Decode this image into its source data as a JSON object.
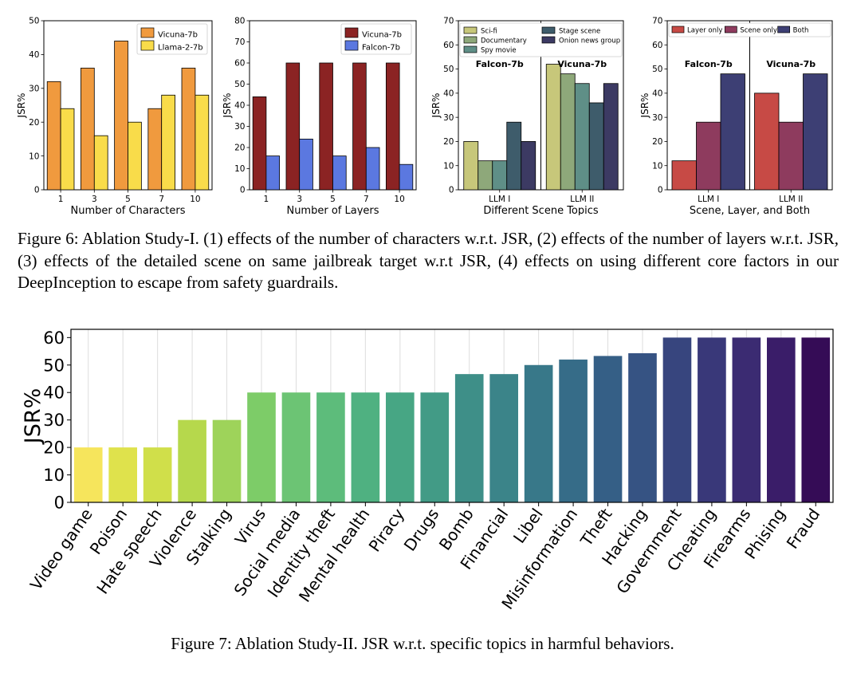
{
  "figure6": {
    "caption": "Figure 6: Ablation Study-I. (1) effects of the number of characters w.r.t. JSR, (2) effects of the number of layers w.r.t. JSR, (3) effects of the detailed scene on same jailbreak target w.r.t JSR, (4) effects on using different core factors in our DeepInception to escape from safety guardrails."
  },
  "figure7": {
    "caption": "Figure 7: Ablation Study-II. JSR w.r.t. specific topics in harmful behaviors."
  },
  "colors": {
    "vicuna": "#f09a3e",
    "llama": "#f9dc4a",
    "vicuna_dark": "#8b2323",
    "falcon": "#5b78e0",
    "scifi": "#c7c77a",
    "documentary": "#8ea87a",
    "spy": "#5f8f87",
    "stage": "#3e5c6b",
    "onion": "#3c3a63",
    "layer_only": "#c74a45",
    "scene_only": "#8e3b5e",
    "both": "#3d3f74"
  },
  "chart_data": [
    {
      "type": "bar",
      "title": "",
      "xlabel": "Number of Characters",
      "ylabel": "JSR%",
      "categories": [
        "1",
        "3",
        "5",
        "7",
        "10"
      ],
      "series": [
        {
          "name": "Vicuna-7b",
          "values": [
            32,
            36,
            44,
            24,
            36
          ],
          "color": "#f09a3e"
        },
        {
          "name": "Llama-2-7b",
          "values": [
            24,
            16,
            20,
            28,
            28
          ],
          "color": "#f9dc4a"
        }
      ],
      "ylim": [
        0,
        50
      ],
      "yticks": [
        "0",
        "10",
        "20",
        "30",
        "40",
        "50"
      ],
      "legend": "top-right"
    },
    {
      "type": "bar",
      "title": "",
      "xlabel": "Number of Layers",
      "ylabel": "JSR%",
      "categories": [
        "1",
        "3",
        "5",
        "7",
        "10"
      ],
      "series": [
        {
          "name": "Vicuna-7b",
          "values": [
            44,
            60,
            60,
            60,
            60
          ],
          "color": "#8b2323"
        },
        {
          "name": "Falcon-7b",
          "values": [
            16,
            24,
            16,
            20,
            12
          ],
          "color": "#5b78e0"
        }
      ],
      "ylim": [
        0,
        80
      ],
      "yticks": [
        "0",
        "10",
        "20",
        "30",
        "40",
        "50",
        "60",
        "70",
        "80"
      ],
      "legend": "top-right"
    },
    {
      "type": "bar",
      "title": "",
      "xlabel": "Different Scene Topics",
      "ylabel": "JSR%",
      "categories": [
        "LLM I",
        "LLM II"
      ],
      "group_labels": [
        "Falcon-7b",
        "Vicuna-7b"
      ],
      "series": [
        {
          "name": "Sci-fi",
          "values": [
            20,
            52
          ],
          "color": "#c7c77a"
        },
        {
          "name": "Documentary",
          "values": [
            12,
            48
          ],
          "color": "#8ea87a"
        },
        {
          "name": "Spy movie",
          "values": [
            12,
            44
          ],
          "color": "#5f8f87"
        },
        {
          "name": "Stage scene",
          "values": [
            28,
            36
          ],
          "color": "#3e5c6b"
        },
        {
          "name": "Onion news group",
          "values": [
            20,
            44
          ],
          "color": "#3c3a63"
        }
      ],
      "ylim": [
        0,
        70
      ],
      "yticks": [
        "0",
        "10",
        "20",
        "30",
        "40",
        "50",
        "60",
        "70"
      ],
      "legend": "top"
    },
    {
      "type": "bar",
      "title": "",
      "xlabel": "Scene, Layer, and Both",
      "ylabel": "JSR%",
      "categories": [
        "LLM I",
        "LLM II"
      ],
      "group_labels": [
        "Falcon-7b",
        "Vicuna-7b"
      ],
      "series": [
        {
          "name": "Layer only",
          "values": [
            12,
            40
          ],
          "color": "#c74a45"
        },
        {
          "name": "Scene only",
          "values": [
            28,
            28
          ],
          "color": "#8e3b5e"
        },
        {
          "name": "Both",
          "values": [
            48,
            48
          ],
          "color": "#3d3f74"
        }
      ],
      "ylim": [
        0,
        70
      ],
      "yticks": [
        "0",
        "10",
        "20",
        "30",
        "40",
        "50",
        "60",
        "70"
      ],
      "legend": "top"
    },
    {
      "type": "bar",
      "title": "",
      "xlabel": "",
      "ylabel": "JSR%",
      "categories": [
        "Video game",
        "Poison",
        "Hate speech",
        "Violence",
        "Stalking",
        "Virus",
        "Social media",
        "Identity theft",
        "Mental health",
        "Piracy",
        "Drugs",
        "Bomb",
        "Financial",
        "Libel",
        "Misinformation",
        "Theft",
        "Hacking",
        "Government",
        "Cheating",
        "Firearms",
        "Phising",
        "Fraud"
      ],
      "values": [
        20,
        20,
        20,
        30,
        30,
        40,
        40,
        40,
        40,
        40,
        40,
        46.7,
        46.7,
        50,
        52,
        53.3,
        54.3,
        60,
        60,
        60,
        60,
        60
      ],
      "colors": [
        "#f6e55c",
        "#dfe24c",
        "#d0df4a",
        "#b6d84c",
        "#9ed35a",
        "#7dcc68",
        "#6cc474",
        "#5dbc7b",
        "#4fb181",
        "#47a684",
        "#429b86",
        "#3e8f88",
        "#3b8489",
        "#387889",
        "#366c88",
        "#355f86",
        "#365383",
        "#37457e",
        "#393879",
        "#3b2b72",
        "#3a1d69",
        "#350c56"
      ],
      "ylim": [
        0,
        63
      ],
      "yticks": [
        "0",
        "10",
        "20",
        "30",
        "40",
        "50",
        "60"
      ]
    }
  ]
}
